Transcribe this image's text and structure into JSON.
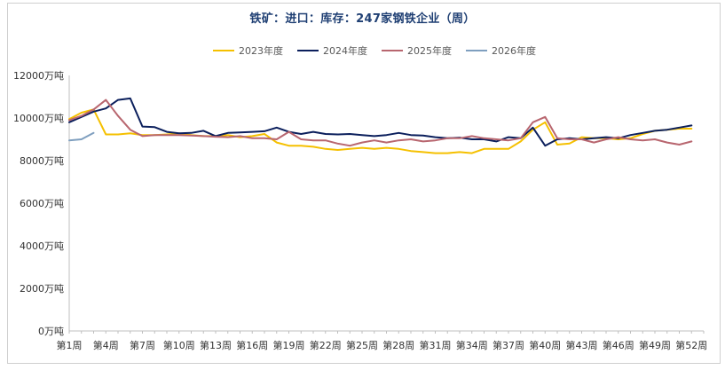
{
  "chart_data": {
    "type": "line",
    "title": "铁矿：进口：库存：247家钢铁企业（周）",
    "xlabel": "",
    "ylabel": "",
    "ylim": [
      0,
      12000
    ],
    "yticks": [
      "0万吨",
      "2000万吨",
      "4000万吨",
      "6000万吨",
      "8000万吨",
      "10000万吨",
      "12000万吨"
    ],
    "xticks": [
      "第1周",
      "第4周",
      "第7周",
      "第10周",
      "第13周",
      "第16周",
      "第19周",
      "第22周",
      "第25周",
      "第28周",
      "第31周",
      "第34周",
      "第37周",
      "第40周",
      "第43周",
      "第46周",
      "第49周",
      "第52周"
    ],
    "legend_position": "top-center",
    "grid": false,
    "colors": {
      "axis": "#bfbfbf",
      "title": "#1f3f73"
    },
    "series": [
      {
        "name": "2023年度",
        "color": "#f5c000",
        "x": [
          1,
          2,
          3,
          4,
          5,
          6,
          7,
          8,
          9,
          10,
          11,
          12,
          13,
          14,
          15,
          16,
          17,
          18,
          19,
          20,
          21,
          22,
          23,
          24,
          25,
          26,
          27,
          28,
          29,
          30,
          31,
          32,
          33,
          34,
          35,
          36,
          37,
          38,
          39,
          40,
          41,
          42,
          43,
          44,
          45,
          46,
          47,
          48,
          49,
          50,
          51,
          52
        ],
        "values": [
          9950,
          10250,
          10400,
          9230,
          9230,
          9280,
          9200,
          9200,
          9230,
          9280,
          9200,
          9150,
          9150,
          9200,
          9100,
          9150,
          9250,
          8850,
          8700,
          8700,
          8650,
          8550,
          8500,
          8550,
          8600,
          8550,
          8600,
          8550,
          8450,
          8400,
          8350,
          8350,
          8400,
          8350,
          8550,
          8550,
          8550,
          8900,
          9450,
          9800,
          8750,
          8800,
          9100,
          9050,
          9050,
          9000,
          9050,
          9250,
          9400,
          9450,
          9500,
          9500
        ]
      },
      {
        "name": "2024年度",
        "color": "#0b1f5c",
        "x": [
          1,
          2,
          3,
          4,
          5,
          6,
          7,
          8,
          9,
          10,
          11,
          12,
          13,
          14,
          15,
          16,
          17,
          18,
          19,
          20,
          21,
          22,
          23,
          24,
          25,
          26,
          27,
          28,
          29,
          30,
          31,
          32,
          33,
          34,
          35,
          36,
          37,
          38,
          39,
          40,
          41,
          42,
          43,
          44,
          45,
          46,
          47,
          48,
          49,
          50,
          51,
          52
        ],
        "values": [
          9800,
          10050,
          10300,
          10450,
          10850,
          10920,
          9600,
          9570,
          9350,
          9280,
          9300,
          9400,
          9150,
          9300,
          9320,
          9350,
          9380,
          9550,
          9350,
          9250,
          9350,
          9250,
          9230,
          9250,
          9200,
          9150,
          9200,
          9300,
          9200,
          9180,
          9100,
          9050,
          9080,
          9000,
          9000,
          8900,
          9100,
          9050,
          9550,
          8700,
          9000,
          9050,
          9000,
          9050,
          9100,
          9050,
          9200,
          9300,
          9400,
          9450,
          9550,
          9650
        ]
      },
      {
        "name": "2025年度",
        "color": "#b8666f",
        "x": [
          1,
          2,
          3,
          4,
          5,
          6,
          7,
          8,
          9,
          10,
          11,
          12,
          13,
          14,
          15,
          16,
          17,
          18,
          19,
          20,
          21,
          22,
          23,
          24,
          25,
          26,
          27,
          28,
          29,
          30,
          31,
          32,
          33,
          34,
          35,
          36,
          37,
          38,
          39,
          40,
          41,
          42,
          43,
          44,
          45,
          46,
          47,
          48,
          49,
          50,
          51,
          52
        ],
        "values": [
          9900,
          10100,
          10400,
          10850,
          10100,
          9450,
          9150,
          9200,
          9200,
          9200,
          9180,
          9150,
          9120,
          9100,
          9150,
          9050,
          9050,
          9000,
          9350,
          9000,
          8950,
          8950,
          8800,
          8700,
          8850,
          8950,
          8850,
          8950,
          9000,
          8900,
          8950,
          9050,
          9050,
          9150,
          9050,
          9000,
          8950,
          9050,
          9800,
          10050,
          9050,
          9000,
          9000,
          8850,
          9000,
          9100,
          9000,
          8950,
          9000,
          8850,
          8750,
          8900
        ]
      },
      {
        "name": "2026年度",
        "color": "#7f9fbf",
        "x": [
          1,
          2,
          3
        ],
        "values": [
          8950,
          9000,
          9300
        ]
      }
    ]
  }
}
